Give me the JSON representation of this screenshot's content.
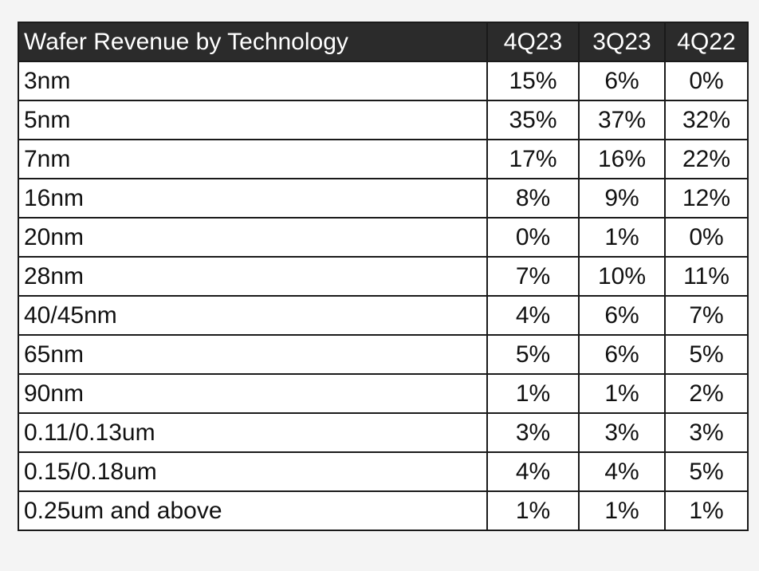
{
  "table": {
    "title": "Wafer Revenue by Technology",
    "columns": [
      "4Q23",
      "3Q23",
      "4Q22"
    ],
    "rows": [
      {
        "label": "3nm",
        "values": [
          "15%",
          "6%",
          "0%"
        ]
      },
      {
        "label": "5nm",
        "values": [
          "35%",
          "37%",
          "32%"
        ]
      },
      {
        "label": "7nm",
        "values": [
          "17%",
          "16%",
          "22%"
        ]
      },
      {
        "label": "16nm",
        "values": [
          "8%",
          "9%",
          "12%"
        ]
      },
      {
        "label": "20nm",
        "values": [
          "0%",
          "1%",
          "0%"
        ]
      },
      {
        "label": "28nm",
        "values": [
          "7%",
          "10%",
          "11%"
        ]
      },
      {
        "label": "40/45nm",
        "values": [
          "4%",
          "6%",
          "7%"
        ]
      },
      {
        "label": "65nm",
        "values": [
          "5%",
          "6%",
          "5%"
        ]
      },
      {
        "label": "90nm",
        "values": [
          "1%",
          "1%",
          "2%"
        ]
      },
      {
        "label": "0.11/0.13um",
        "values": [
          "3%",
          "3%",
          "3%"
        ]
      },
      {
        "label": "0.15/0.18um",
        "values": [
          "4%",
          "4%",
          "5%"
        ]
      },
      {
        "label": "0.25um and above",
        "values": [
          "1%",
          "1%",
          "1%"
        ]
      }
    ]
  },
  "colors": {
    "header_bg": "#2b2b2b",
    "header_text": "#ffffff",
    "border": "#1a1a1a"
  }
}
